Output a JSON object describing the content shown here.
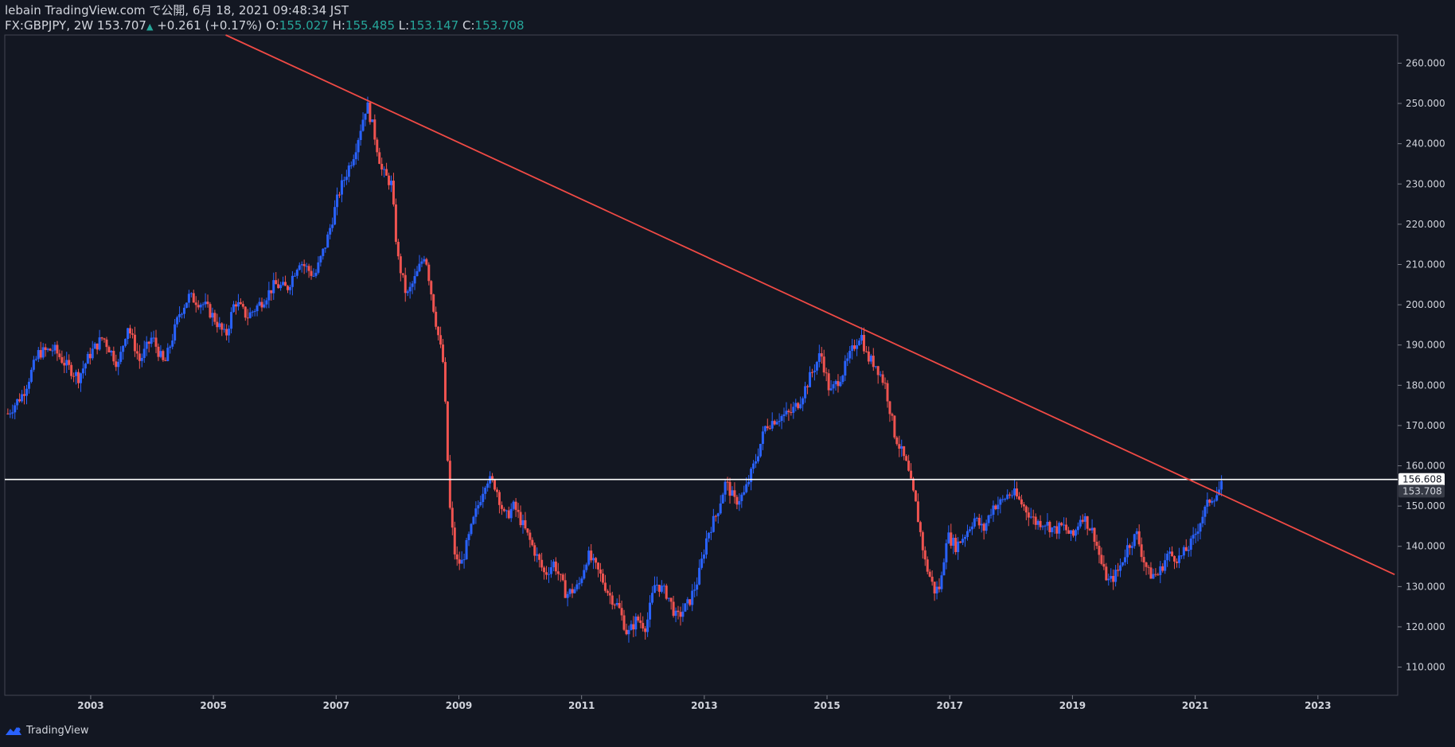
{
  "header": {
    "line1": "lebain TradingView.com で公開, 6月 18, 2021 09:48:34 JST",
    "symbol": "FX:GBPJPY, 2W",
    "last": "153.707",
    "change": "+0.261 (+0.17%)",
    "o_label": "O:",
    "o_val": "155.027",
    "h_label": "H:",
    "h_val": "155.485",
    "l_label": "L:",
    "l_val": "153.147",
    "c_label": "C:",
    "c_val": "153.708"
  },
  "footer": {
    "brand": "TradingView",
    "logo_icon": "tradingview-logo-icon"
  },
  "colors": {
    "bg": "#131722",
    "up": "#2962ff",
    "down": "#ef5350",
    "trend": "#f04a45",
    "hline": "#ffffff",
    "grid_border": "#434651",
    "green": "#26a69a"
  },
  "chart_data": {
    "type": "candlestick",
    "symbol": "FX:GBPJPY",
    "interval": "2W",
    "ylim": [
      103,
      267
    ],
    "xlim": [
      2001.6,
      2024.3
    ],
    "y_ticks": [
      110,
      120,
      130,
      140,
      150,
      160,
      170,
      180,
      190,
      200,
      210,
      220,
      230,
      240,
      250,
      260
    ],
    "y_tick_labels": [
      "110.000",
      "120.000",
      "130.000",
      "140.000",
      "150.000",
      "160.000",
      "170.000",
      "180.000",
      "190.000",
      "200.000",
      "210.000",
      "220.000",
      "230.000",
      "240.000",
      "250.000",
      "260.000"
    ],
    "x_ticks": [
      2003,
      2005,
      2007,
      2009,
      2011,
      2013,
      2015,
      2017,
      2019,
      2021,
      2023
    ],
    "x_tick_labels": [
      "2003",
      "2005",
      "2007",
      "2009",
      "2011",
      "2013",
      "2015",
      "2017",
      "2019",
      "2021",
      "2023"
    ],
    "price_path": [
      [
        2001.65,
        173
      ],
      [
        2001.9,
        178
      ],
      [
        2002.15,
        188
      ],
      [
        2002.4,
        189
      ],
      [
        2002.6,
        185
      ],
      [
        2002.8,
        182
      ],
      [
        2003.0,
        188
      ],
      [
        2003.2,
        192
      ],
      [
        2003.45,
        185
      ],
      [
        2003.6,
        195
      ],
      [
        2003.8,
        186
      ],
      [
        2004.0,
        192
      ],
      [
        2004.2,
        185
      ],
      [
        2004.45,
        198
      ],
      [
        2004.6,
        202
      ],
      [
        2004.85,
        200
      ],
      [
        2005.0,
        197
      ],
      [
        2005.2,
        192
      ],
      [
        2005.35,
        201
      ],
      [
        2005.55,
        197
      ],
      [
        2005.8,
        201
      ],
      [
        2006.0,
        205
      ],
      [
        2006.2,
        204
      ],
      [
        2006.4,
        211
      ],
      [
        2006.65,
        207
      ],
      [
        2006.85,
        216
      ],
      [
        2007.05,
        228
      ],
      [
        2007.3,
        238
      ],
      [
        2007.5,
        250
      ],
      [
        2007.6,
        244
      ],
      [
        2007.75,
        233
      ],
      [
        2007.9,
        230
      ],
      [
        2008.0,
        212
      ],
      [
        2008.15,
        202
      ],
      [
        2008.3,
        207
      ],
      [
        2008.45,
        213
      ],
      [
        2008.6,
        198
      ],
      [
        2008.75,
        185
      ],
      [
        2008.85,
        150
      ],
      [
        2008.95,
        136
      ],
      [
        2009.05,
        136
      ],
      [
        2009.25,
        147
      ],
      [
        2009.45,
        157
      ],
      [
        2009.6,
        155
      ],
      [
        2009.75,
        147
      ],
      [
        2009.9,
        150
      ],
      [
        2010.05,
        145
      ],
      [
        2010.2,
        140
      ],
      [
        2010.4,
        133
      ],
      [
        2010.55,
        136
      ],
      [
        2010.75,
        128
      ],
      [
        2010.95,
        130
      ],
      [
        2011.1,
        138
      ],
      [
        2011.3,
        133
      ],
      [
        2011.45,
        128
      ],
      [
        2011.6,
        125
      ],
      [
        2011.75,
        118
      ],
      [
        2011.9,
        122
      ],
      [
        2012.05,
        120
      ],
      [
        2012.2,
        131
      ],
      [
        2012.4,
        128
      ],
      [
        2012.55,
        122
      ],
      [
        2012.75,
        126
      ],
      [
        2012.9,
        132
      ],
      [
        2013.05,
        143
      ],
      [
        2013.2,
        148
      ],
      [
        2013.35,
        156
      ],
      [
        2013.5,
        151
      ],
      [
        2013.65,
        153
      ],
      [
        2013.85,
        162
      ],
      [
        2014.0,
        170
      ],
      [
        2014.2,
        172
      ],
      [
        2014.4,
        173
      ],
      [
        2014.55,
        176
      ],
      [
        2014.75,
        183
      ],
      [
        2014.9,
        188
      ],
      [
        2015.05,
        178
      ],
      [
        2015.25,
        183
      ],
      [
        2015.45,
        190
      ],
      [
        2015.55,
        193
      ],
      [
        2015.65,
        187
      ],
      [
        2015.8,
        185
      ],
      [
        2015.95,
        180
      ],
      [
        2016.1,
        168
      ],
      [
        2016.3,
        160
      ],
      [
        2016.45,
        150
      ],
      [
        2016.6,
        136
      ],
      [
        2016.75,
        129
      ],
      [
        2016.85,
        130
      ],
      [
        2016.95,
        143
      ],
      [
        2017.1,
        140
      ],
      [
        2017.25,
        143
      ],
      [
        2017.4,
        147
      ],
      [
        2017.55,
        144
      ],
      [
        2017.7,
        150
      ],
      [
        2017.85,
        151
      ],
      [
        2017.95,
        153
      ],
      [
        2018.05,
        153
      ],
      [
        2018.25,
        149
      ],
      [
        2018.4,
        146
      ],
      [
        2018.55,
        146
      ],
      [
        2018.7,
        144
      ],
      [
        2018.85,
        145
      ],
      [
        2019.0,
        142
      ],
      [
        2019.15,
        148
      ],
      [
        2019.35,
        143
      ],
      [
        2019.5,
        134
      ],
      [
        2019.6,
        131
      ],
      [
        2019.75,
        134
      ],
      [
        2019.9,
        140
      ],
      [
        2020.05,
        143
      ],
      [
        2020.15,
        137
      ],
      [
        2020.25,
        133
      ],
      [
        2020.4,
        133
      ],
      [
        2020.55,
        138
      ],
      [
        2020.75,
        137
      ],
      [
        2020.95,
        141
      ],
      [
        2021.1,
        147
      ],
      [
        2021.25,
        152
      ],
      [
        2021.35,
        153
      ],
      [
        2021.45,
        155.5
      ]
    ],
    "trendline": {
      "x": [
        2005.2,
        2024.25
      ],
      "y": [
        267,
        133
      ]
    },
    "horizontal_line": {
      "y": 156.608,
      "label": "156.608"
    },
    "last_price": {
      "y": 153.708,
      "label": "153.708"
    }
  }
}
